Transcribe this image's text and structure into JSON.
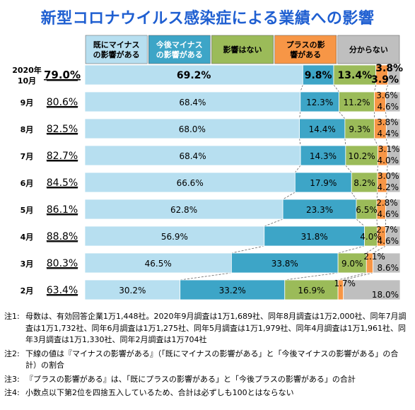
{
  "title": "新型コロナウイルス感染症による業績への影響",
  "legend": [
    {
      "label": "既にマイナスの影響がある",
      "color": "#b7dff0",
      "text_color": "#000000"
    },
    {
      "label": "今後マイナスの影響がある",
      "color": "#3da5c7",
      "text_color": "#ffffff"
    },
    {
      "label": "影響はない",
      "color": "#9bbb59",
      "text_color": "#000000"
    },
    {
      "label": "プラスの影響がある",
      "color": "#f79646",
      "text_color": "#000000"
    },
    {
      "label": "分からない",
      "color": "#bfbfbf",
      "text_color": "#000000"
    }
  ],
  "chart_data": {
    "type": "bar",
    "orientation": "horizontal",
    "stacked": true,
    "categories": [
      "2020年10月",
      "9月",
      "8月",
      "7月",
      "6月",
      "5月",
      "4月",
      "3月",
      "2月"
    ],
    "minus_totals": [
      "79.0%",
      "80.6%",
      "82.5%",
      "82.7%",
      "84.5%",
      "86.1%",
      "88.8%",
      "80.3%",
      "63.4%"
    ],
    "series": [
      {
        "name": "既にマイナスの影響がある",
        "values": [
          69.2,
          68.4,
          68.0,
          68.4,
          66.6,
          62.8,
          56.9,
          46.5,
          30.2
        ]
      },
      {
        "name": "今後マイナスの影響がある",
        "values": [
          9.8,
          12.3,
          14.4,
          14.3,
          17.9,
          23.3,
          31.8,
          33.8,
          33.2
        ]
      },
      {
        "name": "影響はない",
        "values": [
          13.4,
          11.2,
          9.3,
          10.2,
          8.2,
          6.5,
          4.0,
          9.0,
          16.9
        ]
      },
      {
        "name": "プラスの影響がある",
        "values": [
          3.8,
          3.6,
          3.8,
          3.1,
          3.0,
          2.8,
          2.7,
          2.1,
          1.7
        ]
      },
      {
        "name": "分からない",
        "values": [
          3.9,
          4.6,
          4.4,
          4.0,
          4.2,
          4.6,
          4.6,
          8.6,
          18.0
        ]
      }
    ],
    "xlim": [
      0,
      100
    ]
  },
  "notes": [
    {
      "index": "注1:",
      "text": "母数は、有効回答企業1万1,448社。2020年9月調査は1万1,689社、同年8月調査は1万2,000社、同年7月調査は1万1,732社、同年6月調査は1万1,275社、同年5月調査は1万1,979社、同年4月調査は1万1,961社、同年3月調査は1万1,330社、同年2月調査は1万704社"
    },
    {
      "index": "注2:",
      "text": "下線の値は『マイナスの影響がある』（「既にマイナスの影響がある」と「今後マイナスの影響がある」の合計）の割合"
    },
    {
      "index": "注3:",
      "text": "『プラスの影響がある』は、「既にプラスの影響がある」と「今後プラスの影響がある」の合計"
    },
    {
      "index": "注4:",
      "text": "小数点以下第2位を四捨五入しているため、合計は必ずしも100とはならない"
    }
  ]
}
